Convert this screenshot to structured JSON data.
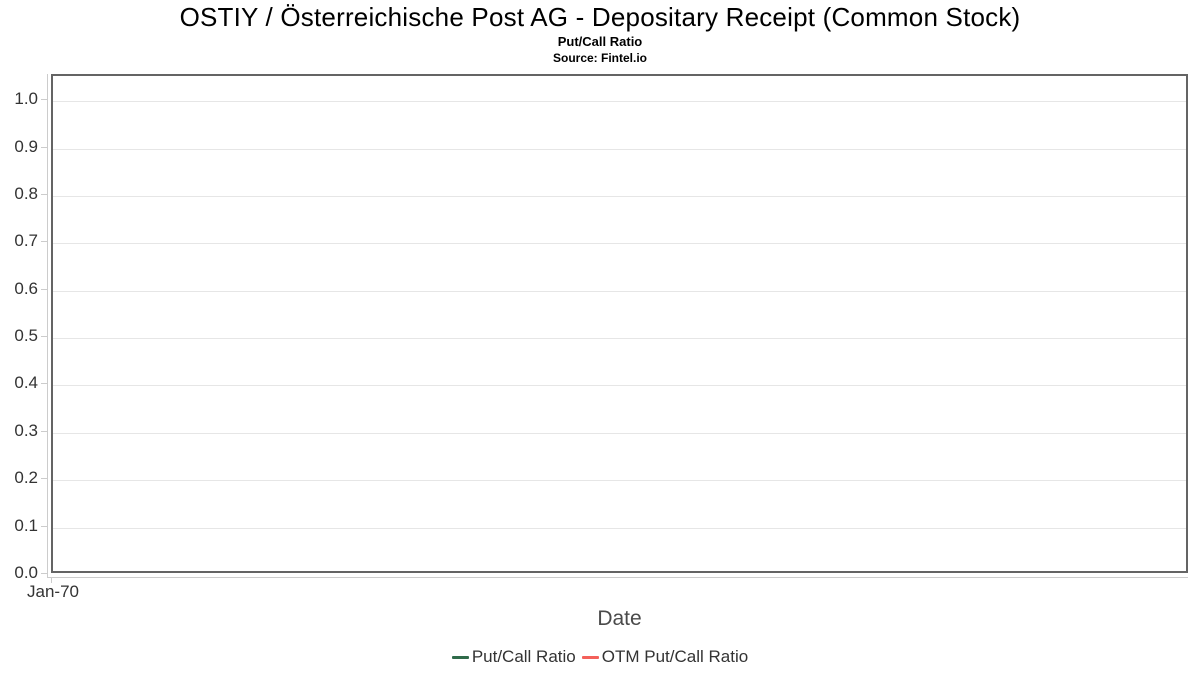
{
  "chart_data": {
    "type": "line",
    "title": "OSTIY / Österreichische Post AG - Depositary Receipt (Common Stock)",
    "subtitle": "Put/Call Ratio",
    "source": "Source: Fintel.io",
    "xlabel": "Date",
    "ylabel": "",
    "x_tick_labels": [
      "Jan-70"
    ],
    "y_tick_labels": [
      "0.0",
      "0.1",
      "0.2",
      "0.3",
      "0.4",
      "0.5",
      "0.6",
      "0.7",
      "0.8",
      "0.9",
      "1.0"
    ],
    "ylim": [
      0,
      1.053
    ],
    "grid": true,
    "legend_position": "bottom",
    "plot_border_color": "#646464",
    "gridline_color": "#e6e6e6",
    "axis_line_color": "#cccccc",
    "series": [
      {
        "name": "Put/Call Ratio",
        "color": "#2f6b4a",
        "x": [],
        "values": []
      },
      {
        "name": "OTM Put/Call Ratio",
        "color": "#f4605a",
        "x": [],
        "values": []
      }
    ]
  }
}
